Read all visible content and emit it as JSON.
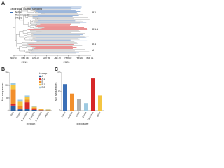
{
  "panel_a": {
    "label": "A",
    "legend_title": "Geographic location sampling",
    "legend": [
      {
        "name": "Wuhan",
        "color": "#3b6fb6"
      },
      {
        "name": "The Americas",
        "color": "#d62728"
      },
      {
        "name": "Others",
        "color": "#b0b0b0"
      }
    ],
    "clades": [
      "B.1",
      "B.1.1",
      "A.1",
      "A"
    ],
    "dates": [
      "Nov 24",
      "Dec 08",
      "Dec 22",
      "Jan 05",
      "Jan 19",
      "Feb 02",
      "Feb 16",
      "Mar 01"
    ],
    "years": [
      "2019",
      "2020"
    ]
  },
  "chart_data": [
    {
      "type": "bar",
      "stacked": true,
      "label": "B",
      "ylabel": "No. sequences",
      "xlabel": "Region",
      "legend_title": "Lineage",
      "categories": [
        "Asia",
        "Europe",
        "N. America",
        "Oceania",
        "S. America",
        "Africa"
      ],
      "series": [
        {
          "name": "A",
          "color": "#2c5f9e",
          "values": [
            20,
            5,
            8,
            3,
            1,
            1
          ]
        },
        {
          "name": "A.1",
          "color": "#d62728",
          "values": [
            5,
            3,
            25,
            4,
            1,
            0
          ]
        },
        {
          "name": "B",
          "color": "#f28e2b",
          "values": [
            60,
            10,
            10,
            5,
            2,
            1
          ]
        },
        {
          "name": "B.1",
          "color": "#f4c542",
          "values": [
            15,
            20,
            12,
            3,
            2,
            2
          ]
        },
        {
          "name": "B.2",
          "color": "#9ecae1",
          "values": [
            10,
            5,
            5,
            2,
            1,
            1
          ]
        }
      ],
      "ylim": [
        0,
        150
      ],
      "yticks": [
        0,
        50,
        100,
        150
      ]
    },
    {
      "type": "bar",
      "label": "C",
      "ylabel": "No. sequences",
      "xlabel": "Exposure",
      "categories": [
        "Travel",
        "Contact",
        "Local",
        "Cruise",
        "Unknown",
        "Other"
      ],
      "values": [
        70,
        45,
        30,
        20,
        85,
        40
      ],
      "colors": [
        "#3b6fb6",
        "#f28e2b",
        "#b0b0b0",
        "#9ecae1",
        "#d62728",
        "#f4c542"
      ],
      "ylim": [
        0,
        100
      ],
      "yticks": [
        0,
        50,
        100
      ]
    }
  ]
}
